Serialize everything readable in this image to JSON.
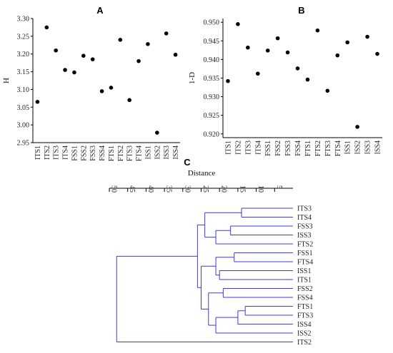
{
  "chart_data": [
    {
      "type": "scatter",
      "panel": "A",
      "ylabel": "H",
      "categories": [
        "ITS1",
        "ITS2",
        "ITS3",
        "ITS4",
        "FSS1",
        "FSS2",
        "FSS3",
        "FSS4",
        "FTS1",
        "FTS2",
        "FTS3",
        "FTS4",
        "ISS1",
        "ISS2",
        "ISS3",
        "ISS4"
      ],
      "values": [
        3.065,
        3.275,
        3.21,
        3.155,
        3.148,
        3.195,
        3.185,
        3.095,
        3.105,
        3.24,
        3.07,
        3.18,
        3.228,
        2.978,
        3.258,
        3.198
      ],
      "ylim": [
        2.95,
        3.3
      ],
      "yticks": [
        "2.95",
        "3.00",
        "3.05",
        "3.10",
        "3.15",
        "3.20",
        "3.25",
        "3.30"
      ]
    },
    {
      "type": "scatter",
      "panel": "B",
      "ylabel": "1-D",
      "categories": [
        "ITS1",
        "ITS2",
        "ITS3",
        "ITS4",
        "FSS1",
        "FSS2",
        "FSS3",
        "FSS4",
        "FTS1",
        "FTS2",
        "FTS3",
        "FTS4",
        "ISS1",
        "ISS2",
        "ISS3",
        "ISS4"
      ],
      "values": [
        0.9342,
        0.9495,
        0.9432,
        0.9362,
        0.9424,
        0.9457,
        0.9419,
        0.9376,
        0.9346,
        0.9478,
        0.9316,
        0.9411,
        0.9446,
        0.9219,
        0.9461,
        0.9415
      ],
      "ylim": [
        0.919,
        0.951
      ],
      "yticks": [
        "0.920",
        "0.925",
        "0.930",
        "0.935",
        "0.940",
        "0.945",
        "0.950"
      ]
    },
    {
      "type": "dendrogram",
      "panel": "C",
      "xlabel": "Distance",
      "xticks": [
        "50",
        "45",
        "40",
        "35",
        "30",
        "25",
        "20",
        "15",
        "10",
        "5"
      ],
      "xtick_values": [
        50,
        45,
        40,
        35,
        30,
        25,
        20,
        15,
        10,
        5
      ],
      "xlim": [
        50,
        0
      ],
      "leaves": [
        "ITS3",
        "ITS4",
        "FSS3",
        "ISS3",
        "FTS2",
        "FSS1",
        "FTS4",
        "ISS1",
        "ITS1",
        "FSS2",
        "FSS4",
        "FTS1",
        "FTS3",
        "ISS4",
        "ISS2",
        "ITS2"
      ],
      "merges": [
        {
          "a": "ITS3",
          "b": "ITS4",
          "height": 14
        },
        {
          "a": "FSS3",
          "b": "ISS3",
          "height": 17
        },
        {
          "a": "ITS3+ITS4",
          "b": "FSS3+ISS3+FTS2",
          "height": 24
        },
        {
          "a": "FSS1",
          "b": "FTS4",
          "height": 16
        },
        {
          "a": "FSS1+FTS4",
          "b": "ISS1+ITS1",
          "height": 21
        },
        {
          "a": "FSS2",
          "b": "FSS4",
          "height": 19
        },
        {
          "a": "FTS1",
          "b": "FTS3",
          "height": 13
        },
        {
          "a": "FTS1+FTS3",
          "b": "ISS4",
          "height": 15
        },
        {
          "a": "FTS1+FTS3+ISS4",
          "b": "ISS2",
          "height": 21
        },
        {
          "a": "FSS2+FSS4",
          "b": "FTS1+FTS3+ISS4+ISS2",
          "height": 23
        },
        {
          "a": "FSS1..ITS1",
          "b": "FSS2..ISS2",
          "height": 25
        },
        {
          "a": "ITS3..FTS2",
          "b": "FSS1..ISS2",
          "height": 26
        },
        {
          "a": "rest",
          "b": "ITS2",
          "height": 48
        }
      ]
    }
  ]
}
